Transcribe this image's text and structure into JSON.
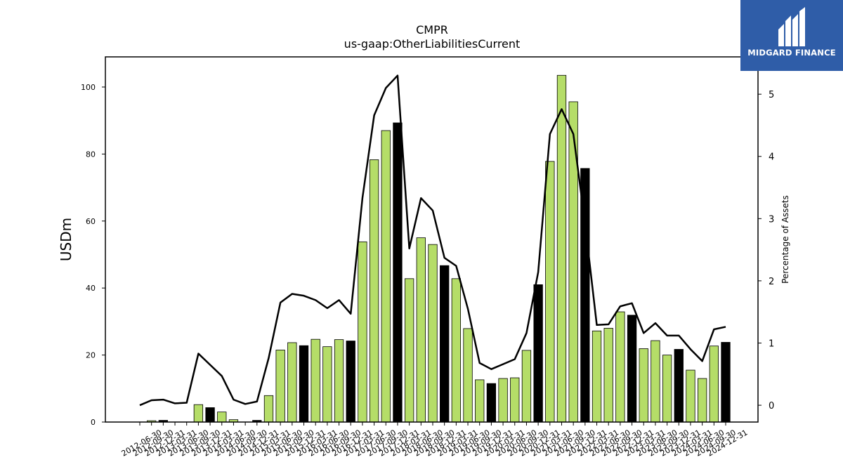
{
  "chart_data": {
    "type": "bar",
    "title": "CMPR",
    "subtitle": "us-gaap:OtherLiabilitiesCurrent",
    "ylabel": "USDm",
    "y2label": "Percentage of Assets",
    "ylim": [
      0,
      109
    ],
    "y2lim": [
      -0.27,
      5.6
    ],
    "yticks": [
      0,
      20,
      40,
      60,
      80,
      100
    ],
    "y2ticks": [
      0,
      1,
      2,
      3,
      4,
      5
    ],
    "categories": [
      "2012-06-30",
      "2012-09-30",
      "2012-12-31",
      "2013-03-31",
      "2013-06-30",
      "2013-09-30",
      "2013-12-31",
      "2014-03-31",
      "2014-06-30",
      "2014-09-30",
      "2014-12-31",
      "2015-03-31",
      "2015-06-30",
      "2015-09-30",
      "2015-12-31",
      "2016-03-31",
      "2016-06-30",
      "2016-09-30",
      "2016-12-31",
      "2017-03-31",
      "2017-06-30",
      "2017-09-30",
      "2017-12-31",
      "2018-03-31",
      "2018-06-30",
      "2018-09-30",
      "2018-12-31",
      "2019-03-31",
      "2019-06-30",
      "2019-09-30",
      "2019-12-31",
      "2020-03-31",
      "2020-06-30",
      "2020-09-30",
      "2020-12-31",
      "2021-03-31",
      "2021-06-30",
      "2021-09-30",
      "2021-12-31",
      "2022-03-31",
      "2022-06-30",
      "2022-09-30",
      "2022-12-31",
      "2023-03-31",
      "2023-06-30",
      "2023-09-30",
      "2023-12-31",
      "2024-03-31",
      "2024-06-30",
      "2024-09-30",
      "2024-12-31"
    ],
    "series": [
      {
        "type": "bar",
        "values": [
          0,
          0.4,
          0.5,
          0,
          0,
          5.2,
          4.3,
          3,
          0.7,
          0,
          0.5,
          7.9,
          21.5,
          23.7,
          22.8,
          24.7,
          22.5,
          24.6,
          24.2,
          53.8,
          78.3,
          87,
          89.3,
          42.8,
          55,
          53,
          46.7,
          42.8,
          27.9,
          12.6,
          11.5,
          13,
          13.2,
          21.4,
          41,
          77.8,
          103.5,
          95.6,
          75.7,
          27.2,
          28,
          32.9,
          31.9,
          21.9,
          24.3,
          20,
          21.7,
          15.5,
          13,
          22.7,
          23.8
        ],
        "colors": [
          "#b5dd68",
          "#b5dd68",
          "#000000",
          "#b5dd68",
          "#b5dd68",
          "#b5dd68",
          "#000000",
          "#b5dd68",
          "#b5dd68",
          "#b5dd68",
          "#000000",
          "#b5dd68",
          "#b5dd68",
          "#b5dd68",
          "#000000",
          "#b5dd68",
          "#b5dd68",
          "#b5dd68",
          "#000000",
          "#b5dd68",
          "#b5dd68",
          "#b5dd68",
          "#000000",
          "#b5dd68",
          "#b5dd68",
          "#b5dd68",
          "#000000",
          "#b5dd68",
          "#b5dd68",
          "#b5dd68",
          "#000000",
          "#b5dd68",
          "#b5dd68",
          "#b5dd68",
          "#000000",
          "#b5dd68",
          "#b5dd68",
          "#b5dd68",
          "#000000",
          "#b5dd68",
          "#b5dd68",
          "#b5dd68",
          "#000000",
          "#b5dd68",
          "#b5dd68",
          "#b5dd68",
          "#000000",
          "#b5dd68",
          "#b5dd68",
          "#b5dd68",
          "#000000"
        ]
      },
      {
        "type": "line",
        "axis": "right",
        "color": "#000000",
        "values": [
          0,
          0.08,
          0.09,
          0.03,
          0.04,
          0.83,
          0.65,
          0.47,
          0.09,
          0.02,
          0.06,
          0.76,
          1.65,
          1.79,
          1.76,
          1.69,
          1.56,
          1.69,
          1.47,
          3.33,
          4.66,
          5.1,
          5.3,
          2.52,
          3.33,
          3.13,
          2.37,
          2.24,
          1.55,
          0.68,
          0.58,
          0.66,
          0.74,
          1.16,
          2.14,
          4.36,
          4.76,
          4.36,
          2.92,
          1.29,
          1.3,
          1.59,
          1.64,
          1.16,
          1.32,
          1.12,
          1.12,
          0.9,
          0.71,
          1.22,
          1.26
        ]
      }
    ]
  },
  "logo": {
    "text": "MIDGARD FINANCE"
  }
}
